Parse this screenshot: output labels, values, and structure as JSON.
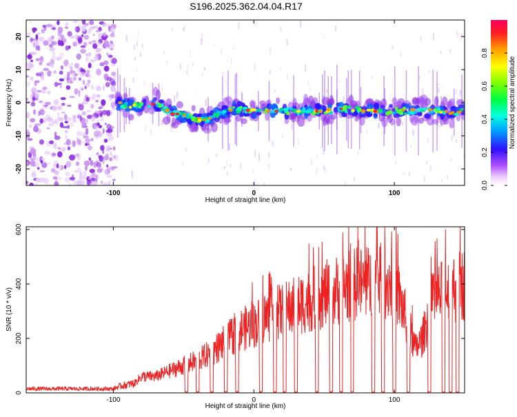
{
  "title": "S196.2025.362.04.04.R17",
  "colors": {
    "snr_line": "#ee2222",
    "background": "#ffffff",
    "axis": "#000000"
  },
  "chart_data": [
    {
      "type": "heatmap",
      "name": "spectrogram",
      "xlabel": "Height of straight line (km)",
      "ylabel": "Frequency (Hz)",
      "xlim": [
        -162,
        150
      ],
      "ylim": [
        -25,
        25
      ],
      "xticks": [
        -100,
        0,
        100
      ],
      "xtick_labels": [
        "-100",
        "0",
        "100"
      ],
      "yticks": [
        -20,
        -10,
        0,
        10,
        20
      ],
      "ytick_labels": [
        "-20",
        "-10",
        "0",
        "10",
        "20"
      ],
      "noise_region_x": [
        -162,
        -98
      ],
      "signal_start_x": -98,
      "ridge": {
        "x": [
          -98,
          -90,
          -80,
          -70,
          -60,
          -50,
          -40,
          -32,
          -25,
          -20,
          -15,
          -10,
          0,
          10,
          20,
          30,
          40,
          50,
          60,
          70,
          80,
          90,
          100,
          110,
          120,
          130,
          140,
          150
        ],
        "freq": [
          0,
          -1,
          -1,
          0,
          -3,
          -4,
          -5,
          -5,
          -3.5,
          -2.5,
          -2,
          -2,
          -2.5,
          -2.5,
          -2.5,
          -2.5,
          -2.5,
          -2.5,
          -2,
          -2,
          -2.5,
          -2.5,
          -2.5,
          -2.5,
          -2.5,
          -2.5,
          -3,
          -2.5
        ]
      },
      "colorbar": {
        "label": "Normalized spectral amplitude",
        "range": [
          0.0,
          1.0
        ],
        "ticks": [
          0.0,
          0.2,
          0.4,
          0.6,
          0.8
        ],
        "tick_labels": [
          "0.0",
          "0.2",
          "0.4",
          "0.6",
          "0.8"
        ]
      }
    },
    {
      "type": "line",
      "name": "snr",
      "xlabel": "Height of straight line (km)",
      "ylabel": "SNR (10 * v/v)",
      "xlim": [
        -162,
        150
      ],
      "ylim": [
        0,
        610
      ],
      "xticks": [
        -100,
        0,
        100
      ],
      "xtick_labels": [
        "-100",
        "0",
        "100"
      ],
      "yticks": [
        0,
        200,
        400,
        600
      ],
      "ytick_labels": [
        "0",
        "200",
        "400",
        "600"
      ],
      "envelope": {
        "x": [
          -162,
          -100,
          -95,
          -85,
          -80,
          -70,
          -60,
          -50,
          -40,
          -30,
          -20,
          -10,
          0,
          10,
          20,
          30,
          40,
          50,
          60,
          70,
          80,
          90,
          100,
          110,
          115,
          120,
          125,
          130,
          140,
          150
        ],
        "y": [
          15,
          15,
          25,
          35,
          60,
          60,
          80,
          100,
          120,
          150,
          190,
          230,
          250,
          280,
          300,
          320,
          340,
          360,
          380,
          400,
          400,
          410,
          400,
          250,
          160,
          200,
          300,
          350,
          380,
          400
        ]
      },
      "dropouts_x": [
        -48,
        -40,
        -30,
        -20,
        -12,
        5,
        15,
        22,
        30,
        45,
        55,
        62,
        70,
        85,
        92,
        100,
        110,
        125,
        135,
        140,
        145
      ]
    }
  ]
}
